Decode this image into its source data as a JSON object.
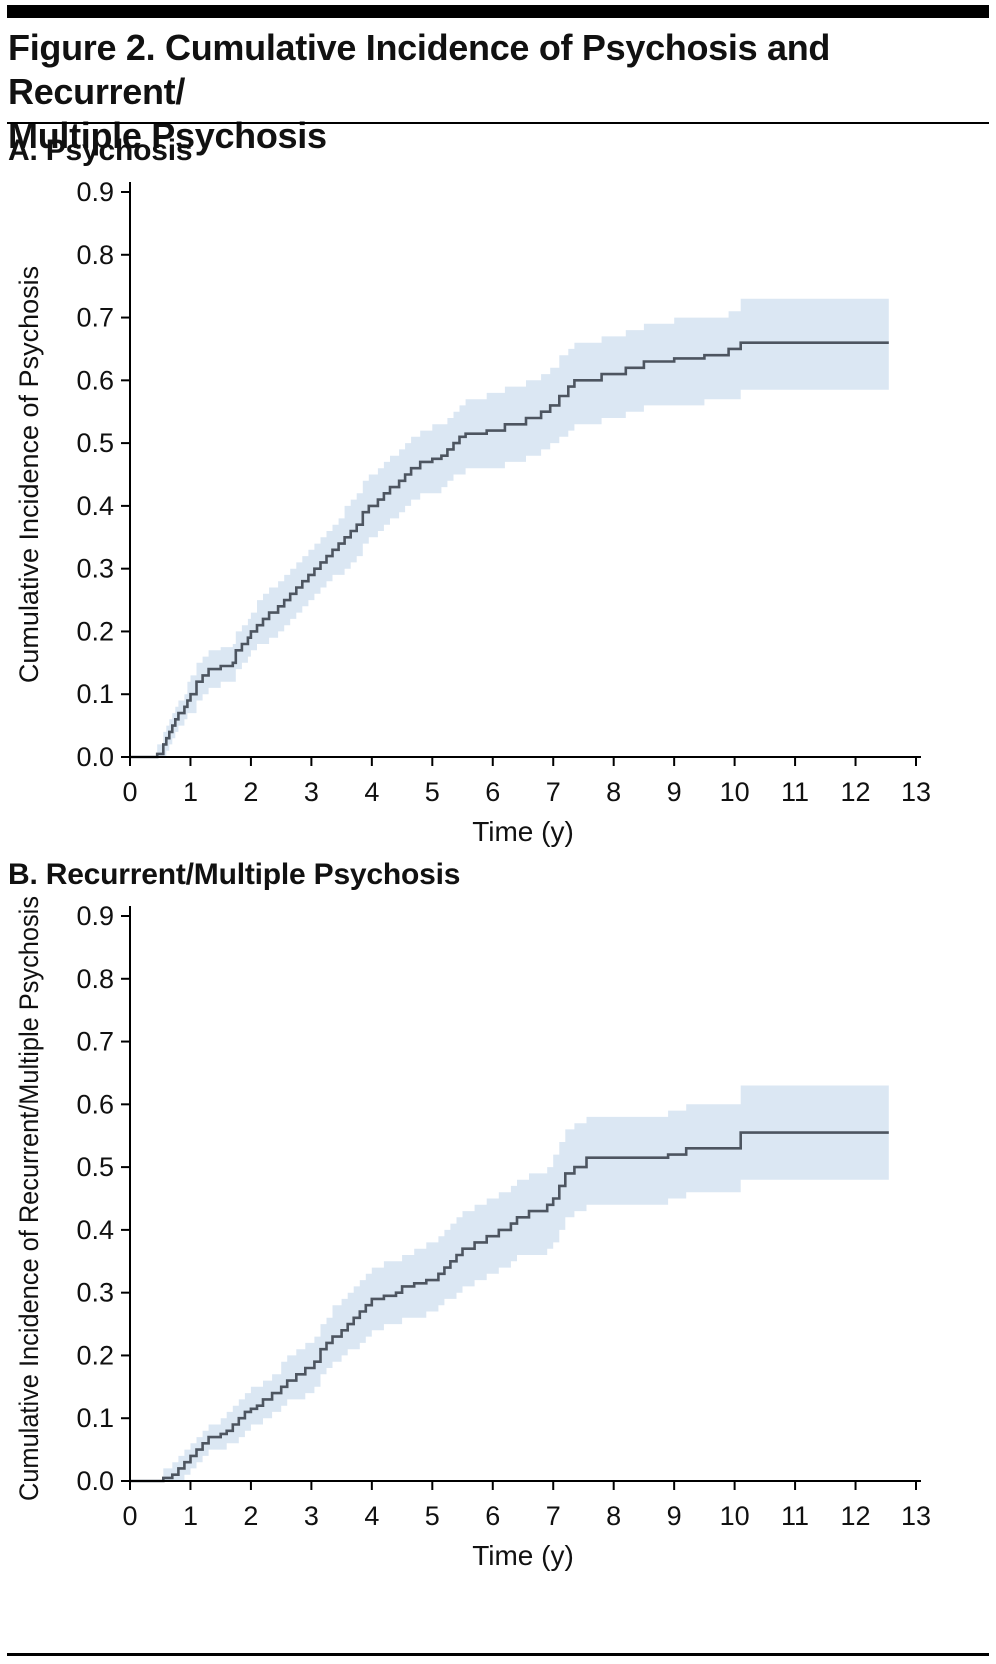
{
  "figure": {
    "title_line1": "Figure 2. Cumulative Incidence of Psychosis and Recurrent/",
    "title_line2": "Multiple Psychosis",
    "title_full": "Figure 2. Cumulative Incidence of Psychosis and Recurrent/Multiple Psychosis"
  },
  "chart_data": [
    {
      "type": "line",
      "variant": "step-cumulative-incidence-with-confidence-band",
      "title": "A. Psychosis",
      "xlabel": "Time (y)",
      "ylabel": "Cumulative Incidence of Psychosis",
      "xlim": [
        0,
        13
      ],
      "ylim": [
        0,
        0.9
      ],
      "xticks": [
        "0",
        "1",
        "2",
        "3",
        "4",
        "5",
        "6",
        "7",
        "8",
        "9",
        "10",
        "11",
        "12",
        "13"
      ],
      "yticks": [
        "0.0",
        "0.1",
        "0.2",
        "0.3",
        "0.4",
        "0.5",
        "0.6",
        "0.7",
        "0.8",
        "0.9"
      ],
      "grid": false,
      "legend": "none",
      "line_color": "#4d5560",
      "band_color": "#dbe7f3",
      "axis_color": "#000000",
      "points_format": [
        "time_y",
        "estimate",
        "ci_lower",
        "ci_upper"
      ],
      "points": [
        [
          0,
          0,
          0,
          0
        ],
        [
          0.45,
          0.005,
          0,
          0.02
        ],
        [
          0.55,
          0.02,
          0,
          0.04
        ],
        [
          0.6,
          0.03,
          0.01,
          0.05
        ],
        [
          0.65,
          0.04,
          0.02,
          0.06
        ],
        [
          0.7,
          0.05,
          0.03,
          0.07
        ],
        [
          0.75,
          0.06,
          0.04,
          0.08
        ],
        [
          0.8,
          0.07,
          0.05,
          0.09
        ],
        [
          0.9,
          0.08,
          0.06,
          0.1
        ],
        [
          0.95,
          0.09,
          0.07,
          0.12
        ],
        [
          1,
          0.1,
          0.07,
          0.13
        ],
        [
          1.1,
          0.12,
          0.09,
          0.15
        ],
        [
          1.2,
          0.13,
          0.1,
          0.16
        ],
        [
          1.3,
          0.14,
          0.11,
          0.17
        ],
        [
          1.5,
          0.145,
          0.12,
          0.175
        ],
        [
          1.7,
          0.15,
          0.12,
          0.18
        ],
        [
          1.75,
          0.17,
          0.14,
          0.2
        ],
        [
          1.85,
          0.18,
          0.15,
          0.21
        ],
        [
          1.95,
          0.19,
          0.16,
          0.22
        ],
        [
          2,
          0.2,
          0.17,
          0.23
        ],
        [
          2.1,
          0.21,
          0.18,
          0.25
        ],
        [
          2.2,
          0.22,
          0.18,
          0.26
        ],
        [
          2.3,
          0.23,
          0.19,
          0.27
        ],
        [
          2.45,
          0.24,
          0.2,
          0.28
        ],
        [
          2.55,
          0.25,
          0.21,
          0.29
        ],
        [
          2.65,
          0.26,
          0.22,
          0.3
        ],
        [
          2.75,
          0.27,
          0.23,
          0.31
        ],
        [
          2.85,
          0.28,
          0.24,
          0.32
        ],
        [
          2.95,
          0.29,
          0.25,
          0.33
        ],
        [
          3.05,
          0.3,
          0.26,
          0.34
        ],
        [
          3.15,
          0.31,
          0.27,
          0.35
        ],
        [
          3.25,
          0.32,
          0.28,
          0.36
        ],
        [
          3.35,
          0.33,
          0.29,
          0.37
        ],
        [
          3.45,
          0.34,
          0.29,
          0.38
        ],
        [
          3.55,
          0.35,
          0.3,
          0.4
        ],
        [
          3.65,
          0.36,
          0.31,
          0.41
        ],
        [
          3.75,
          0.37,
          0.32,
          0.42
        ],
        [
          3.85,
          0.39,
          0.34,
          0.44
        ],
        [
          3.95,
          0.4,
          0.35,
          0.45
        ],
        [
          4.1,
          0.41,
          0.36,
          0.46
        ],
        [
          4.2,
          0.42,
          0.37,
          0.47
        ],
        [
          4.3,
          0.43,
          0.38,
          0.48
        ],
        [
          4.45,
          0.44,
          0.39,
          0.49
        ],
        [
          4.55,
          0.45,
          0.4,
          0.5
        ],
        [
          4.65,
          0.46,
          0.41,
          0.51
        ],
        [
          4.8,
          0.47,
          0.42,
          0.52
        ],
        [
          5,
          0.475,
          0.42,
          0.53
        ],
        [
          5.15,
          0.48,
          0.43,
          0.53
        ],
        [
          5.25,
          0.49,
          0.44,
          0.54
        ],
        [
          5.35,
          0.5,
          0.45,
          0.55
        ],
        [
          5.45,
          0.51,
          0.45,
          0.56
        ],
        [
          5.55,
          0.515,
          0.46,
          0.57
        ],
        [
          5.9,
          0.52,
          0.46,
          0.58
        ],
        [
          6.2,
          0.53,
          0.47,
          0.59
        ],
        [
          6.55,
          0.54,
          0.48,
          0.6
        ],
        [
          6.8,
          0.55,
          0.49,
          0.61
        ],
        [
          6.95,
          0.56,
          0.5,
          0.62
        ],
        [
          7.1,
          0.575,
          0.51,
          0.64
        ],
        [
          7.25,
          0.59,
          0.52,
          0.65
        ],
        [
          7.35,
          0.6,
          0.53,
          0.66
        ],
        [
          7.8,
          0.61,
          0.54,
          0.67
        ],
        [
          8.2,
          0.62,
          0.55,
          0.68
        ],
        [
          8.5,
          0.63,
          0.56,
          0.69
        ],
        [
          9,
          0.635,
          0.56,
          0.7
        ],
        [
          9.5,
          0.64,
          0.57,
          0.7
        ],
        [
          9.9,
          0.65,
          0.57,
          0.71
        ],
        [
          10.1,
          0.66,
          0.585,
          0.73
        ],
        [
          12.55,
          0.66,
          0.585,
          0.73
        ]
      ]
    },
    {
      "type": "line",
      "variant": "step-cumulative-incidence-with-confidence-band",
      "title": "B. Recurrent/Multiple Psychosis",
      "xlabel": "Time (y)",
      "ylabel": "Cumulative Incidence of Recurrent/Multiple Psychosis",
      "xlim": [
        0,
        13
      ],
      "ylim": [
        0,
        0.9
      ],
      "xticks": [
        "0",
        "1",
        "2",
        "3",
        "4",
        "5",
        "6",
        "7",
        "8",
        "9",
        "10",
        "11",
        "12",
        "13"
      ],
      "yticks": [
        "0.0",
        "0.1",
        "0.2",
        "0.3",
        "0.4",
        "0.5",
        "0.6",
        "0.7",
        "0.8",
        "0.9"
      ],
      "grid": false,
      "legend": "none",
      "line_color": "#4d5560",
      "band_color": "#dbe7f3",
      "axis_color": "#000000",
      "points_format": [
        "time_y",
        "estimate",
        "ci_lower",
        "ci_upper"
      ],
      "points": [
        [
          0,
          0,
          0,
          0
        ],
        [
          0.55,
          0.005,
          0,
          0.02
        ],
        [
          0.7,
          0.01,
          0,
          0.03
        ],
        [
          0.8,
          0.02,
          0,
          0.04
        ],
        [
          0.9,
          0.03,
          0.01,
          0.05
        ],
        [
          1,
          0.04,
          0.02,
          0.06
        ],
        [
          1.1,
          0.05,
          0.03,
          0.07
        ],
        [
          1.2,
          0.06,
          0.04,
          0.08
        ],
        [
          1.3,
          0.07,
          0.05,
          0.09
        ],
        [
          1.5,
          0.075,
          0.05,
          0.1
        ],
        [
          1.6,
          0.08,
          0.06,
          0.11
        ],
        [
          1.7,
          0.09,
          0.06,
          0.12
        ],
        [
          1.8,
          0.1,
          0.07,
          0.13
        ],
        [
          1.9,
          0.11,
          0.08,
          0.14
        ],
        [
          2,
          0.115,
          0.09,
          0.15
        ],
        [
          2.1,
          0.12,
          0.09,
          0.15
        ],
        [
          2.2,
          0.13,
          0.1,
          0.16
        ],
        [
          2.35,
          0.14,
          0.11,
          0.17
        ],
        [
          2.5,
          0.15,
          0.12,
          0.19
        ],
        [
          2.6,
          0.16,
          0.13,
          0.2
        ],
        [
          2.75,
          0.17,
          0.13,
          0.21
        ],
        [
          2.9,
          0.18,
          0.14,
          0.22
        ],
        [
          3.05,
          0.19,
          0.15,
          0.23
        ],
        [
          3.15,
          0.21,
          0.17,
          0.25
        ],
        [
          3.25,
          0.22,
          0.18,
          0.26
        ],
        [
          3.35,
          0.23,
          0.19,
          0.28
        ],
        [
          3.5,
          0.24,
          0.2,
          0.29
        ],
        [
          3.6,
          0.25,
          0.21,
          0.3
        ],
        [
          3.7,
          0.26,
          0.21,
          0.31
        ],
        [
          3.8,
          0.27,
          0.22,
          0.32
        ],
        [
          3.9,
          0.28,
          0.23,
          0.33
        ],
        [
          4,
          0.29,
          0.24,
          0.34
        ],
        [
          4.2,
          0.295,
          0.25,
          0.35
        ],
        [
          4.4,
          0.3,
          0.25,
          0.35
        ],
        [
          4.5,
          0.31,
          0.26,
          0.36
        ],
        [
          4.7,
          0.315,
          0.26,
          0.37
        ],
        [
          4.9,
          0.32,
          0.27,
          0.38
        ],
        [
          5.1,
          0.33,
          0.28,
          0.39
        ],
        [
          5.2,
          0.34,
          0.29,
          0.4
        ],
        [
          5.3,
          0.35,
          0.29,
          0.41
        ],
        [
          5.4,
          0.36,
          0.3,
          0.42
        ],
        [
          5.5,
          0.37,
          0.31,
          0.43
        ],
        [
          5.7,
          0.38,
          0.32,
          0.44
        ],
        [
          5.9,
          0.39,
          0.33,
          0.45
        ],
        [
          6.1,
          0.4,
          0.34,
          0.46
        ],
        [
          6.3,
          0.41,
          0.35,
          0.47
        ],
        [
          6.4,
          0.42,
          0.36,
          0.48
        ],
        [
          6.6,
          0.43,
          0.36,
          0.49
        ],
        [
          6.9,
          0.44,
          0.37,
          0.5
        ],
        [
          7,
          0.45,
          0.38,
          0.52
        ],
        [
          7.1,
          0.47,
          0.4,
          0.54
        ],
        [
          7.2,
          0.49,
          0.42,
          0.56
        ],
        [
          7.35,
          0.5,
          0.43,
          0.57
        ],
        [
          7.55,
          0.515,
          0.44,
          0.58
        ],
        [
          8.9,
          0.52,
          0.45,
          0.59
        ],
        [
          9.2,
          0.53,
          0.46,
          0.6
        ],
        [
          10.1,
          0.555,
          0.48,
          0.63
        ],
        [
          12.55,
          0.555,
          0.48,
          0.63
        ]
      ]
    }
  ]
}
